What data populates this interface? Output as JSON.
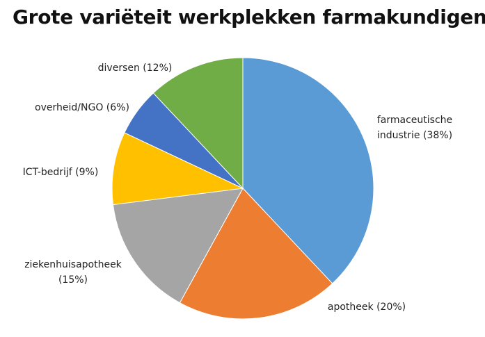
{
  "chart_data": {
    "type": "pie",
    "title": "Grote variëteit werkplekken farmakundigen",
    "slices": [
      {
        "label_lines": [
          "farmaceutische",
          "industrie (38%)"
        ],
        "value": 38,
        "color": "#5B9BD5"
      },
      {
        "label_lines": [
          "apotheek (20%)"
        ],
        "value": 20,
        "color": "#ED7D31"
      },
      {
        "label_lines": [
          "ziekenhuisapotheek",
          "(15%)"
        ],
        "value": 15,
        "color": "#A5A5A5"
      },
      {
        "label_lines": [
          "ICT-bedrijf (9%)"
        ],
        "value": 9,
        "color": "#FFC000"
      },
      {
        "label_lines": [
          "overheid/NGO (6%)"
        ],
        "value": 6,
        "color": "#4472C4"
      },
      {
        "label_lines": [
          "diversen (12%)"
        ],
        "value": 12,
        "color": "#70AD47"
      }
    ],
    "legend": "none",
    "start": "12 o'clock",
    "direction": "clockwise"
  }
}
